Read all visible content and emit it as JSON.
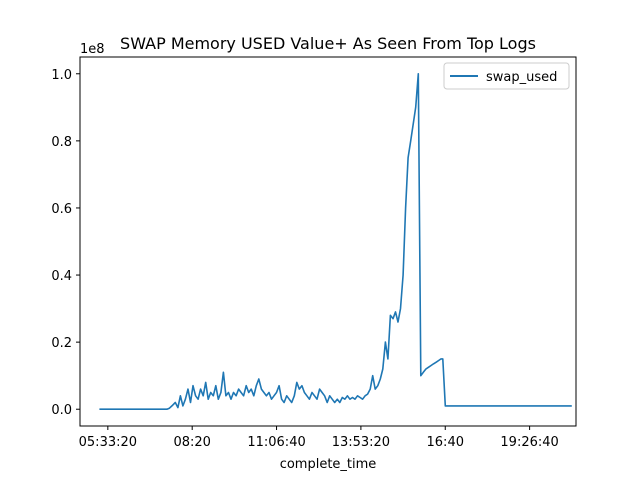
{
  "chart_data": {
    "type": "line",
    "title": "SWAP Memory USED Value+ As Seen From Top Logs",
    "xlabel": "complete_time",
    "ylabel": "",
    "y_offset_label": "1e8",
    "x_ticks": [
      "05:33:20",
      "08:20",
      "11:06:40",
      "13:53:20",
      "16:40",
      "19:26:40"
    ],
    "x_tick_seconds": [
      20000,
      30000,
      40000,
      50000,
      60000,
      70000
    ],
    "y_ticks": [
      "0.0",
      "0.2",
      "0.4",
      "0.6",
      "0.8",
      "1.0"
    ],
    "y_tick_values": [
      0.0,
      0.2,
      0.4,
      0.6,
      0.8,
      1.0
    ],
    "xlim_seconds": [
      16700,
      75500
    ],
    "ylim": [
      -0.05,
      1.05
    ],
    "grid": false,
    "legend_position": "top-right",
    "colors": {
      "series": "#1f77b4",
      "axes": "#000000"
    },
    "series": [
      {
        "name": "swap_used",
        "x_seconds": [
          19000,
          20000,
          22000,
          24000,
          26000,
          27000,
          27300,
          27600,
          28000,
          28300,
          28600,
          28900,
          29200,
          29500,
          29800,
          30100,
          30400,
          30700,
          31000,
          31300,
          31600,
          31900,
          32200,
          32500,
          32800,
          33100,
          33400,
          33700,
          34000,
          34300,
          34600,
          34900,
          35200,
          35500,
          35800,
          36100,
          36400,
          36700,
          37000,
          37300,
          37600,
          37900,
          38200,
          38500,
          38800,
          39100,
          39400,
          39700,
          40000,
          40300,
          40600,
          40900,
          41200,
          41500,
          41800,
          42100,
          42400,
          42700,
          43000,
          43300,
          43600,
          43900,
          44200,
          44500,
          44800,
          45100,
          45400,
          45700,
          46000,
          46300,
          46600,
          46900,
          47200,
          47500,
          47800,
          48100,
          48400,
          48700,
          49000,
          49300,
          49600,
          49900,
          50200,
          50500,
          50800,
          51100,
          51400,
          51700,
          52000,
          52300,
          52600,
          52900,
          53200,
          53500,
          53800,
          54100,
          54400,
          54700,
          55000,
          55300,
          55600,
          55900,
          56200,
          56500,
          56800,
          57100,
          57400,
          57700,
          58000,
          58300,
          58600,
          58900,
          59200,
          59500,
          59700,
          59710,
          60000,
          60300,
          60600,
          60900,
          61200,
          61500,
          61800,
          62000,
          62100,
          62200,
          65000,
          70000,
          75000
        ],
        "values": [
          0.0,
          0.0,
          0.0,
          0.0,
          0.0,
          0.0,
          0.003,
          0.01,
          0.02,
          0.005,
          0.04,
          0.01,
          0.03,
          0.06,
          0.02,
          0.07,
          0.04,
          0.03,
          0.06,
          0.04,
          0.08,
          0.03,
          0.05,
          0.04,
          0.07,
          0.03,
          0.05,
          0.11,
          0.04,
          0.05,
          0.03,
          0.05,
          0.04,
          0.06,
          0.05,
          0.04,
          0.07,
          0.05,
          0.06,
          0.04,
          0.07,
          0.09,
          0.06,
          0.05,
          0.04,
          0.05,
          0.03,
          0.04,
          0.05,
          0.07,
          0.03,
          0.02,
          0.04,
          0.03,
          0.02,
          0.04,
          0.08,
          0.06,
          0.07,
          0.05,
          0.04,
          0.03,
          0.05,
          0.04,
          0.03,
          0.06,
          0.05,
          0.04,
          0.02,
          0.04,
          0.03,
          0.02,
          0.03,
          0.02,
          0.035,
          0.03,
          0.04,
          0.03,
          0.035,
          0.03,
          0.04,
          0.035,
          0.03,
          0.04,
          0.045,
          0.06,
          0.1,
          0.06,
          0.07,
          0.09,
          0.12,
          0.2,
          0.15,
          0.28,
          0.27,
          0.29,
          0.26,
          0.3,
          0.4,
          0.6,
          0.75,
          0.8,
          0.85,
          0.9,
          1.0,
          0.1,
          0.11,
          0.12,
          0.125,
          0.13,
          0.135,
          0.14,
          0.145,
          0.15,
          0.15,
          0.15,
          0.01,
          0.01,
          0.01,
          0.01,
          0.01,
          0.01,
          0.01,
          0.01,
          0.01,
          0.01,
          0.01,
          0.01,
          0.01
        ]
      }
    ]
  }
}
